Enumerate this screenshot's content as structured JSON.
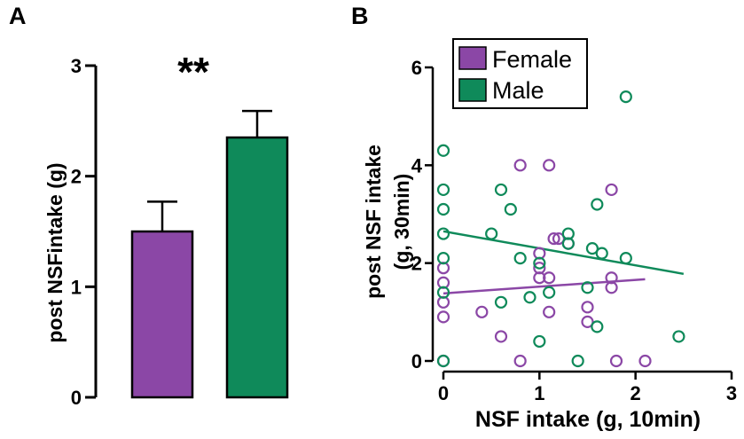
{
  "chart_data": [
    {
      "panel_label": "A",
      "type": "bar",
      "ylabel": "post NSFintake (g)",
      "xlabel": "",
      "ylim": [
        0,
        3
      ],
      "yticks": [
        "0",
        "1",
        "2",
        "3"
      ],
      "significance": "**",
      "categories": [
        "Female",
        "Male"
      ],
      "values": [
        1.5,
        2.35
      ],
      "errors": [
        0.27,
        0.24
      ],
      "colors": [
        "#8b47a6",
        "#0f8a5a"
      ]
    },
    {
      "panel_label": "B",
      "type": "scatter",
      "xlabel": "NSF intake (g, 10min)",
      "ylabel_line1": "post NSF intake",
      "ylabel_line2": "(g, 30min)",
      "xlim": [
        0,
        3
      ],
      "ylim": [
        0,
        6
      ],
      "xticks": [
        "0",
        "1",
        "2",
        "3"
      ],
      "yticks": [
        "0",
        "2",
        "4",
        "6"
      ],
      "legend": {
        "position": "top-left",
        "entries": [
          "Female",
          "Male"
        ]
      },
      "series": [
        {
          "name": "Female",
          "color": "#8b47a6",
          "points": [
            [
              0,
              0
            ],
            [
              0,
              1.2
            ],
            [
              0,
              0.9
            ],
            [
              0,
              1.6
            ],
            [
              0,
              1.9
            ],
            [
              0.4,
              1.0
            ],
            [
              0.6,
              0.5
            ],
            [
              0.8,
              0.0
            ],
            [
              0.8,
              4.0
            ],
            [
              1.0,
              1.7
            ],
            [
              1.0,
              1.9
            ],
            [
              1.0,
              2.2
            ],
            [
              1.1,
              1.7
            ],
            [
              1.1,
              4.0
            ],
            [
              1.1,
              1.0
            ],
            [
              1.15,
              2.5
            ],
            [
              1.2,
              2.5
            ],
            [
              1.3,
              2.4
            ],
            [
              1.5,
              1.1
            ],
            [
              1.5,
              0.8
            ],
            [
              1.75,
              1.7
            ],
            [
              1.75,
              1.5
            ],
            [
              1.75,
              3.5
            ],
            [
              1.8,
              0.0
            ],
            [
              2.1,
              0.0
            ]
          ],
          "fit": [
            [
              0,
              1.38
            ],
            [
              2.1,
              1.67
            ]
          ]
        },
        {
          "name": "Male",
          "color": "#0f8a5a",
          "points": [
            [
              0,
              4.3
            ],
            [
              0,
              3.5
            ],
            [
              0,
              3.1
            ],
            [
              0,
              2.6
            ],
            [
              0,
              2.1
            ],
            [
              0,
              1.4
            ],
            [
              0,
              0
            ],
            [
              0.5,
              2.6
            ],
            [
              0.6,
              3.5
            ],
            [
              0.6,
              1.2
            ],
            [
              0.7,
              3.1
            ],
            [
              0.8,
              2.1
            ],
            [
              0.9,
              1.3
            ],
            [
              1.0,
              2.0
            ],
            [
              1.0,
              0.4
            ],
            [
              1.1,
              1.4
            ],
            [
              1.3,
              2.6
            ],
            [
              1.3,
              2.4
            ],
            [
              1.4,
              0.0
            ],
            [
              1.5,
              1.5
            ],
            [
              1.55,
              2.3
            ],
            [
              1.6,
              3.2
            ],
            [
              1.6,
              0.7
            ],
            [
              1.65,
              2.2
            ],
            [
              1.9,
              2.1
            ],
            [
              1.9,
              5.4
            ],
            [
              2.45,
              0.5
            ]
          ],
          "fit": [
            [
              0,
              2.65
            ],
            [
              2.5,
              1.78
            ]
          ]
        }
      ]
    }
  ]
}
